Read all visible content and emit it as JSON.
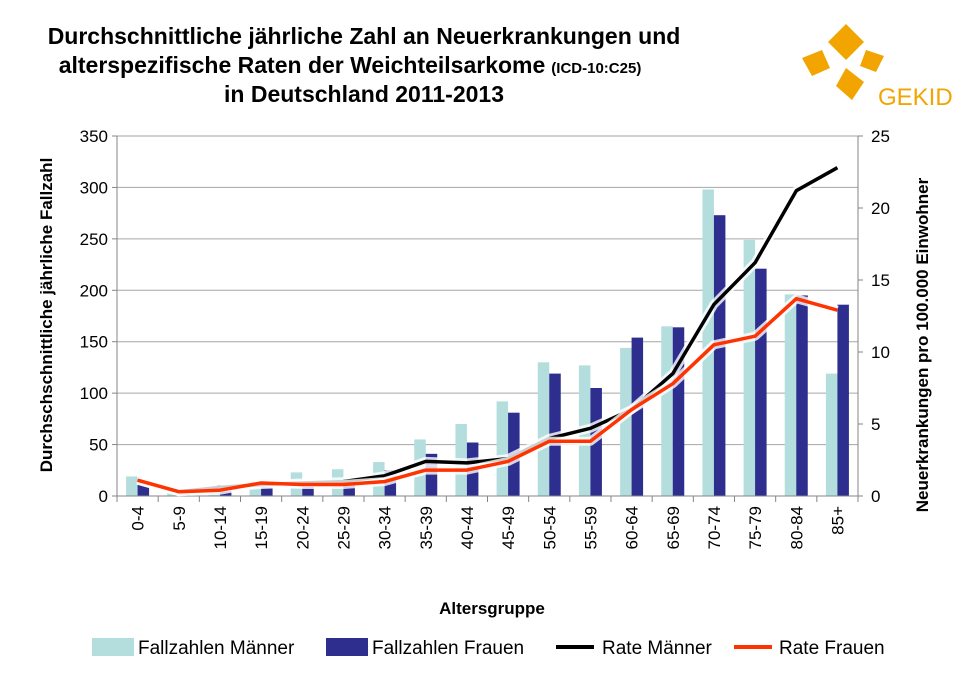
{
  "logo": {
    "text": "GEKID",
    "color": "#f2a500"
  },
  "chart_data": {
    "type": "bar",
    "title": {
      "line1": "Durchschnittliche jährliche Zahl an Neuerkrankungen und",
      "line2": "alterspezifische Raten der Weichteilsarkome",
      "line2_small": "(ICD-10:C25)",
      "line3": "in Deutschland 2011-2013"
    },
    "xlabel": "Altersgruppe",
    "ylabel": "Durchschschnittliche jährliche Fallzahl",
    "y2label": "Neuerkrankungen pro 100.000 Einwohner",
    "categories": [
      "0-4",
      "5-9",
      "10-14",
      "15-19",
      "20-24",
      "25-29",
      "30-34",
      "35-39",
      "40-44",
      "45-49",
      "50-54",
      "55-59",
      "60-64",
      "65-69",
      "70-74",
      "75-79",
      "80-84",
      "85+"
    ],
    "ylim": [
      0,
      350
    ],
    "yticks": [
      0,
      50,
      100,
      150,
      200,
      250,
      300,
      350
    ],
    "y2lim": [
      0,
      25
    ],
    "y2ticks": [
      0,
      5,
      10,
      15,
      20,
      25
    ],
    "grid": true,
    "legend_position": "bottom",
    "series": [
      {
        "name": "Fallzahlen Männer",
        "kind": "bar",
        "axis": "left",
        "color": "#b4dede",
        "values": [
          19,
          3,
          6,
          15,
          23,
          26,
          33,
          55,
          70,
          92,
          130,
          127,
          144,
          165,
          298,
          249,
          196,
          119
        ]
      },
      {
        "name": "Fallzahlen Frauen",
        "kind": "bar",
        "axis": "left",
        "color": "#2e2e8f",
        "values": [
          14,
          2,
          5,
          10,
          11,
          13,
          25,
          41,
          52,
          81,
          119,
          105,
          154,
          164,
          273,
          221,
          195,
          186
        ]
      },
      {
        "name": "Rate Männer",
        "kind": "line",
        "axis": "right",
        "color": "#000000",
        "values": [
          1.1,
          0.3,
          0.6,
          0.8,
          0.9,
          1.0,
          1.4,
          2.4,
          2.3,
          2.6,
          4.0,
          4.7,
          6.0,
          8.5,
          13.3,
          16.2,
          21.2,
          22.8
        ]
      },
      {
        "name": "Rate Frauen",
        "kind": "line",
        "axis": "right",
        "color": "#ff3300",
        "values": [
          1.1,
          0.3,
          0.4,
          0.9,
          0.8,
          0.8,
          1.0,
          1.8,
          1.8,
          2.4,
          3.8,
          3.8,
          6.0,
          7.8,
          10.5,
          11.1,
          13.7,
          12.9
        ]
      }
    ]
  }
}
